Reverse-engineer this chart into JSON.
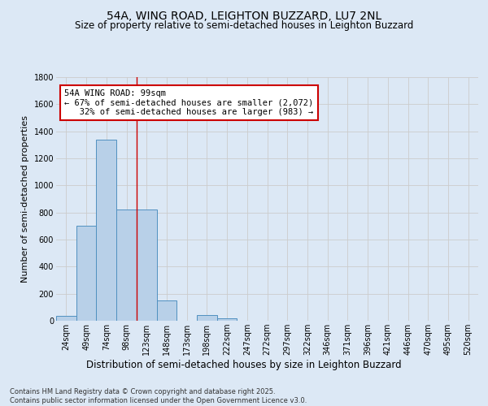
{
  "title": "54A, WING ROAD, LEIGHTON BUZZARD, LU7 2NL",
  "subtitle": "Size of property relative to semi-detached houses in Leighton Buzzard",
  "xlabel": "Distribution of semi-detached houses by size in Leighton Buzzard",
  "ylabel": "Number of semi-detached properties",
  "categories": [
    "24sqm",
    "49sqm",
    "74sqm",
    "98sqm",
    "123sqm",
    "148sqm",
    "173sqm",
    "198sqm",
    "222sqm",
    "247sqm",
    "272sqm",
    "297sqm",
    "322sqm",
    "346sqm",
    "371sqm",
    "396sqm",
    "421sqm",
    "446sqm",
    "470sqm",
    "495sqm",
    "520sqm"
  ],
  "values": [
    38,
    700,
    1340,
    820,
    820,
    150,
    0,
    40,
    20,
    0,
    0,
    0,
    0,
    0,
    0,
    0,
    0,
    0,
    0,
    0,
    0
  ],
  "bar_color": "#b8d0e8",
  "bar_edge_color": "#5090c0",
  "vline_index": 3,
  "vline_color": "#cc0000",
  "annotation_text": "54A WING ROAD: 99sqm\n← 67% of semi-detached houses are smaller (2,072)\n   32% of semi-detached houses are larger (983) →",
  "annotation_box_facecolor": "#ffffff",
  "annotation_box_edgecolor": "#cc0000",
  "grid_color": "#cccccc",
  "background_color": "#dce8f5",
  "plot_bg_color": "#dce8f5",
  "ylim": [
    0,
    1800
  ],
  "yticks": [
    0,
    200,
    400,
    600,
    800,
    1000,
    1200,
    1400,
    1600,
    1800
  ],
  "title_fontsize": 10,
  "subtitle_fontsize": 8.5,
  "xlabel_fontsize": 8.5,
  "ylabel_fontsize": 8,
  "tick_fontsize": 7,
  "annotation_fontsize": 7.5,
  "footnote_fontsize": 6,
  "footnote": "Contains HM Land Registry data © Crown copyright and database right 2025.\nContains public sector information licensed under the Open Government Licence v3.0."
}
